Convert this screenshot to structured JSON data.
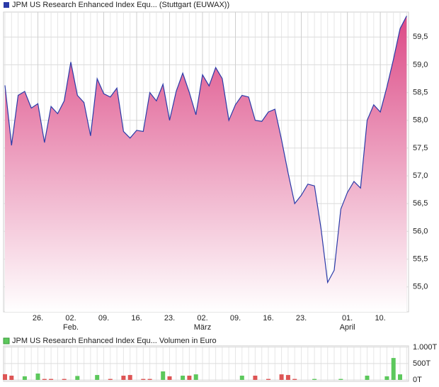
{
  "chart_data": [
    {
      "type": "area",
      "title": "JPM US Research Enhanced Index Equ... (Stuttgart (EUWAX))",
      "color": "#2a3aa8",
      "fill_top": "#dc4a86",
      "values": [
        58.63,
        57.55,
        58.45,
        58.52,
        58.22,
        58.3,
        57.6,
        58.25,
        58.12,
        58.35,
        59.05,
        58.45,
        58.32,
        57.72,
        58.75,
        58.48,
        58.42,
        58.58,
        57.8,
        57.68,
        57.82,
        57.8,
        58.5,
        58.35,
        58.65,
        58.0,
        58.52,
        58.85,
        58.5,
        58.1,
        58.82,
        58.62,
        58.95,
        58.75,
        58.0,
        58.28,
        58.45,
        58.42,
        58.0,
        57.98,
        58.15,
        58.2,
        57.65,
        57.05,
        56.5,
        56.65,
        56.85,
        56.82,
        56.05,
        55.08,
        55.3,
        56.4,
        56.7,
        56.9,
        56.78,
        58.0,
        58.28,
        58.15,
        58.6,
        59.1,
        59.65,
        59.88
      ],
      "ylim": [
        54.55,
        59.95
      ],
      "yticks": [
        {
          "value": 55,
          "label": "55,0"
        },
        {
          "value": 55.5,
          "label": "55,5"
        },
        {
          "value": 56,
          "label": "56,0"
        },
        {
          "value": 56.5,
          "label": "56,5"
        },
        {
          "value": 57,
          "label": "57,0"
        },
        {
          "value": 57.5,
          "label": "57,5"
        },
        {
          "value": 58,
          "label": "58,0"
        },
        {
          "value": 58.5,
          "label": "58,5"
        },
        {
          "value": 59,
          "label": "59,0"
        },
        {
          "value": 59.5,
          "label": "59,5"
        }
      ],
      "xticks": [
        {
          "value": 5,
          "label": "26."
        },
        {
          "value": 10,
          "label": "02."
        },
        {
          "value": 15,
          "label": "09."
        },
        {
          "value": 20,
          "label": "16."
        },
        {
          "value": 25,
          "label": "23."
        },
        {
          "value": 30,
          "label": "02."
        },
        {
          "value": 35,
          "label": "09."
        },
        {
          "value": 40,
          "label": "16."
        },
        {
          "value": 45,
          "label": "23."
        },
        {
          "value": 52,
          "label": "01."
        },
        {
          "value": 57,
          "label": "10."
        }
      ],
      "month_ticks": [
        {
          "value": 10,
          "label": "Feb."
        },
        {
          "value": 30,
          "label": "März"
        },
        {
          "value": 52,
          "label": "April"
        }
      ],
      "grid": true
    },
    {
      "type": "bar",
      "title": "JPM US Research Enhanced Index Equ... Volumen in Euro",
      "color": "#5cc85c",
      "values": [
        175,
        130,
        0,
        110,
        0,
        195,
        30,
        30,
        0,
        30,
        0,
        120,
        0,
        0,
        150,
        0,
        30,
        0,
        130,
        150,
        0,
        30,
        30,
        0,
        260,
        110,
        0,
        130,
        130,
        170,
        0,
        0,
        0,
        0,
        0,
        0,
        130,
        0,
        130,
        0,
        30,
        0,
        170,
        150,
        30,
        0,
        0,
        30,
        0,
        0,
        0,
        30,
        0,
        0,
        0,
        130,
        0,
        0,
        110,
        670,
        170,
        0
      ],
      "colors": [
        "#dd5555",
        "#dd5555",
        "#5cc85c",
        "#5cc85c",
        "#5cc85c",
        "#5cc85c",
        "#dd5555",
        "#dd5555",
        "#5cc85c",
        "#dd5555",
        "#5cc85c",
        "#5cc85c",
        "#5cc85c",
        "#5cc85c",
        "#5cc85c",
        "#5cc85c",
        "#dd5555",
        "#5cc85c",
        "#dd5555",
        "#dd5555",
        "#5cc85c",
        "#dd5555",
        "#dd5555",
        "#5cc85c",
        "#5cc85c",
        "#dd5555",
        "#5cc85c",
        "#5cc85c",
        "#dd5555",
        "#5cc85c",
        "#5cc85c",
        "#5cc85c",
        "#5cc85c",
        "#5cc85c",
        "#5cc85c",
        "#5cc85c",
        "#5cc85c",
        "#5cc85c",
        "#dd5555",
        "#5cc85c",
        "#dd5555",
        "#5cc85c",
        "#dd5555",
        "#dd5555",
        "#dd5555",
        "#5cc85c",
        "#5cc85c",
        "#5cc85c",
        "#5cc85c",
        "#5cc85c",
        "#5cc85c",
        "#5cc85c",
        "#5cc85c",
        "#5cc85c",
        "#5cc85c",
        "#5cc85c",
        "#5cc85c",
        "#5cc85c",
        "#5cc85c",
        "#5cc85c",
        "#5cc85c",
        "#5cc85c"
      ],
      "ylim": [
        0,
        1040
      ],
      "yticks": [
        {
          "value": 0,
          "label": "0T"
        },
        {
          "value": 500,
          "label": "500T"
        },
        {
          "value": 1000,
          "label": "1.000T"
        }
      ],
      "grid": true
    }
  ]
}
